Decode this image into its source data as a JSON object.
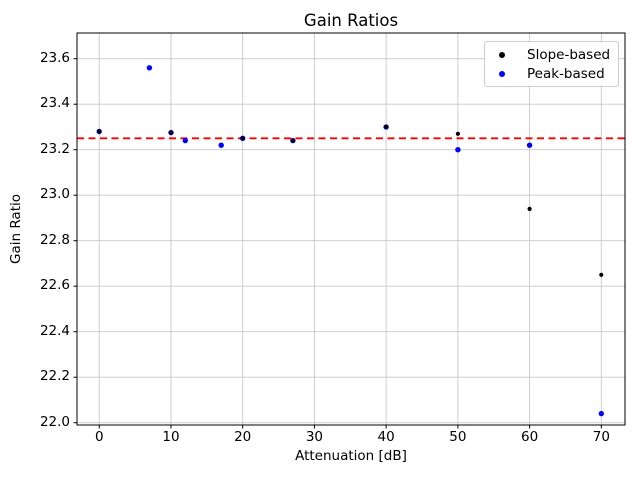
{
  "chart_data": {
    "type": "scatter",
    "title": "Gain Ratios",
    "xlabel": "Attenuation [dB]",
    "ylabel": "Gain Ratio",
    "xlim": [
      -3.1,
      73.3
    ],
    "ylim": [
      21.99,
      23.713
    ],
    "x_ticks": [
      0,
      10,
      20,
      30,
      40,
      50,
      60,
      70
    ],
    "y_ticks": [
      22.0,
      22.2,
      22.4,
      22.6,
      22.8,
      23.0,
      23.2,
      23.4,
      23.6
    ],
    "grid": true,
    "legend_position": "upper right",
    "series": [
      {
        "name": "Slope-based",
        "color": "#000000",
        "points": [
          [
            0,
            23.28
          ],
          [
            10,
            23.275
          ],
          [
            20,
            23.25
          ],
          [
            27,
            23.24
          ],
          [
            40,
            23.3
          ],
          [
            50,
            23.27
          ],
          [
            60,
            22.94
          ],
          [
            70,
            22.65
          ]
        ]
      },
      {
        "name": "Peak-based",
        "color": "#0000ff",
        "points": [
          [
            0,
            23.28
          ],
          [
            7,
            23.56
          ],
          [
            10,
            23.275
          ],
          [
            12,
            23.24
          ],
          [
            17,
            23.22
          ],
          [
            20,
            23.25
          ],
          [
            27,
            23.24
          ],
          [
            40,
            23.3
          ],
          [
            50,
            23.2
          ],
          [
            60,
            23.22
          ],
          [
            70,
            22.04
          ]
        ]
      }
    ],
    "reference_line": {
      "y": 23.25,
      "color": "#ff0000",
      "style": "dashed"
    },
    "colors": {
      "grid": "#c8c8c8",
      "spine": "#000000",
      "background": "#ffffff"
    }
  }
}
